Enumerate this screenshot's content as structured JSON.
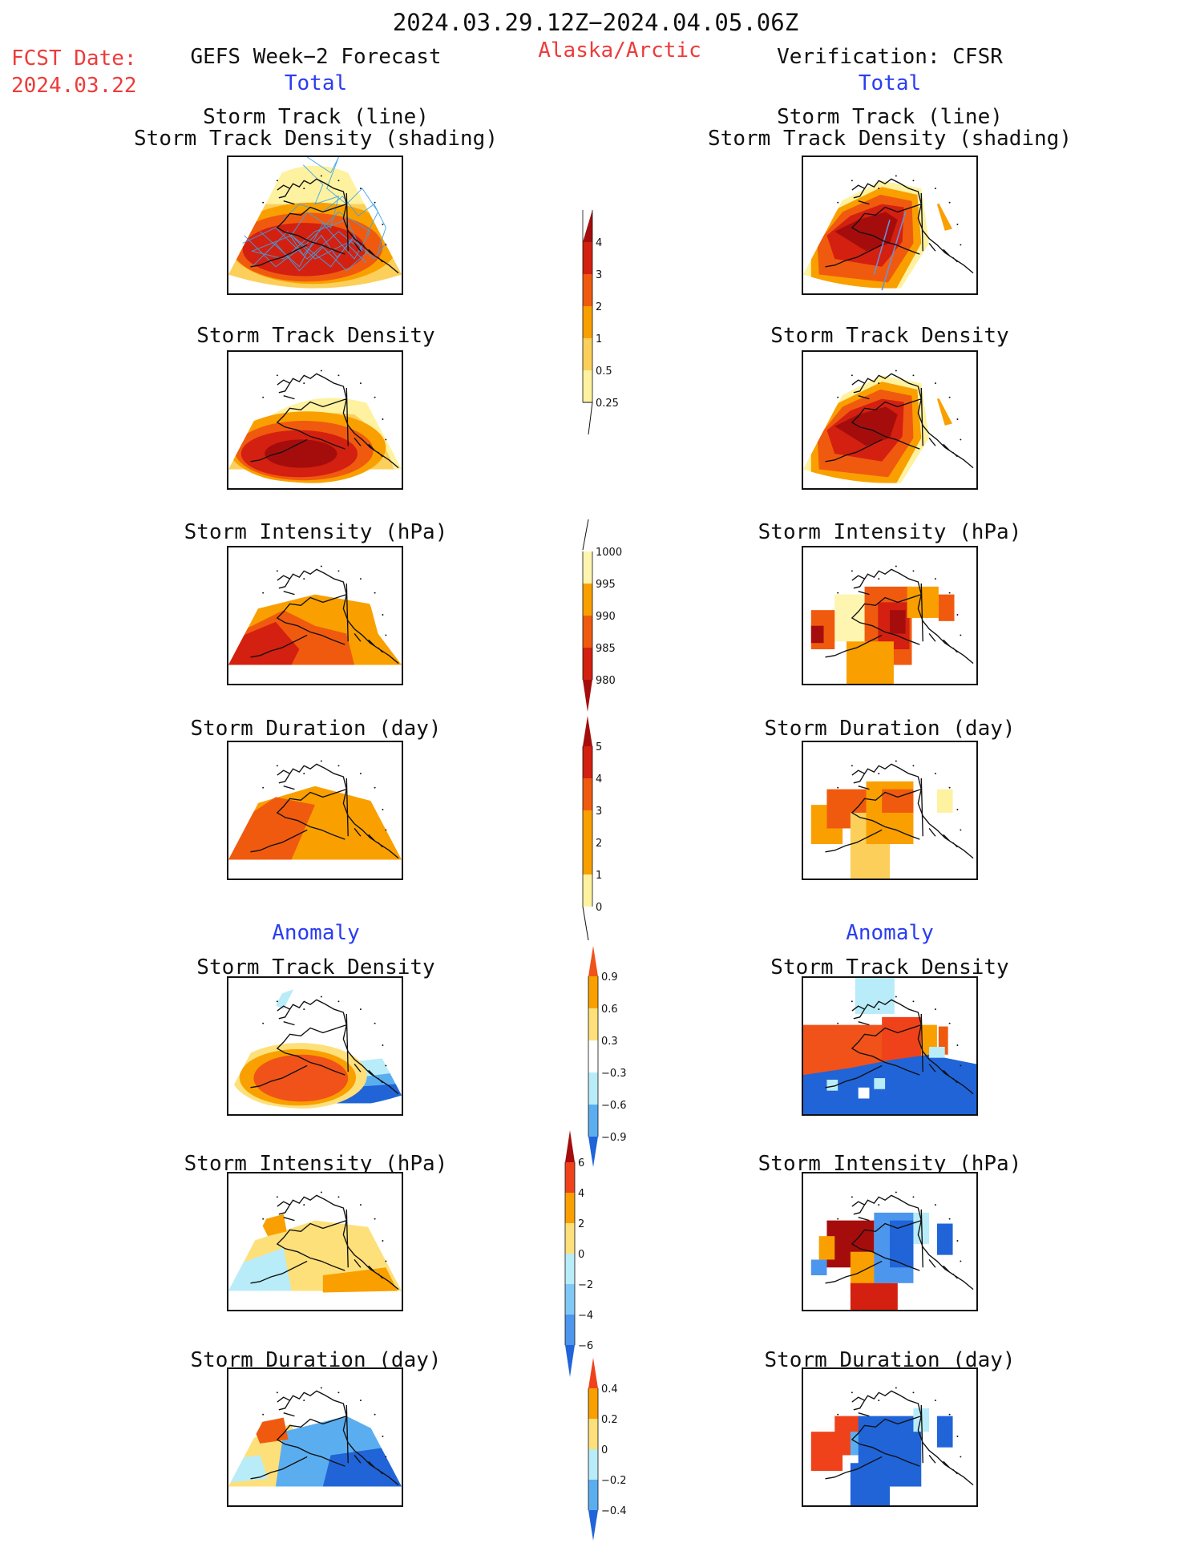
{
  "header": {
    "period": "2024.03.29.12Z−2024.04.05.06Z",
    "fcst_label": "FCST Date:",
    "fcst_date": "2024.03.22",
    "left_title": "GEFS Week−2 Forecast",
    "region": "Alaska/Arctic",
    "right_title": "Verification: CFSR",
    "left_section": "Total",
    "right_section": "Total"
  },
  "titles": {
    "track_line_1": "Storm Track (line)",
    "track_line_2": "Storm Track Density (shading)",
    "density": "Storm Track Density",
    "intensity": "Storm Intensity (hPa)",
    "duration": "Storm Duration (day)",
    "anomaly_left": "Anomaly",
    "anomaly_right": "Anomaly"
  },
  "colorbars": {
    "density": {
      "labels": [
        "4",
        "3",
        "2",
        "1",
        "0.5",
        "0.25"
      ],
      "colors": [
        "#a50d0d",
        "#d42010",
        "#f05a0f",
        "#f9a000",
        "#fbcf5a",
        "#fef2a0"
      ]
    },
    "intensity": {
      "labels": [
        "1000",
        "995",
        "990",
        "985",
        "980"
      ],
      "colors": [
        "#fef5b0",
        "#f9a000",
        "#f05a0f",
        "#d42010",
        "#a50d0d"
      ]
    },
    "duration": {
      "labels": [
        "5",
        "4",
        "3",
        "2",
        "1",
        "0"
      ],
      "colors": [
        "#a50d0d",
        "#d42010",
        "#f05a0f",
        "#f9a000",
        "#fbcf5a",
        "#fef2a0"
      ]
    },
    "density_anom": {
      "labels": [
        "0.9",
        "0.6",
        "0.3",
        "−0.3",
        "−0.6",
        "−0.9"
      ],
      "colors": [
        "#f0521a",
        "#f9a000",
        "#fde07a",
        "#ffffff",
        "#b8ecf8",
        "#5aaef0",
        "#2064d8"
      ]
    },
    "intensity_anom": {
      "labels": [
        "6",
        "4",
        "2",
        "0",
        "−2",
        "−4",
        "−6"
      ],
      "colors": [
        "#a50d0d",
        "#f0421a",
        "#f9a000",
        "#fde07a",
        "#b8ecf8",
        "#80c8f6",
        "#4c96ee",
        "#2064d8"
      ]
    },
    "duration_anom": {
      "labels": [
        "0.4",
        "0.2",
        "0",
        "−0.2",
        "−0.4"
      ],
      "colors": [
        "#f0421a",
        "#f9a000",
        "#fde07a",
        "#b8ecf8",
        "#5aaef0",
        "#2064d8"
      ]
    }
  },
  "palette": {
    "dark_red": "#a50d0d",
    "red": "#d42010",
    "orange_red": "#f05a0f",
    "orange": "#f9a000",
    "light_orange": "#fbcf5a",
    "pale_yellow": "#fef2a0",
    "light_blue": "#b8ecf8",
    "mid_blue": "#5aaef0",
    "blue": "#2064d8",
    "track_line": "#3ba3e8"
  }
}
